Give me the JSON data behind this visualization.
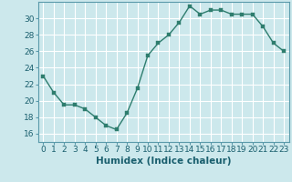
{
  "x": [
    0,
    1,
    2,
    3,
    4,
    5,
    6,
    7,
    8,
    9,
    10,
    11,
    12,
    13,
    14,
    15,
    16,
    17,
    18,
    19,
    20,
    21,
    22,
    23
  ],
  "y": [
    23,
    21,
    19.5,
    19.5,
    19,
    18,
    17,
    16.5,
    18.5,
    21.5,
    25.5,
    27,
    28,
    29.5,
    31.5,
    30.5,
    31,
    31,
    30.5,
    30.5,
    30.5,
    29,
    27,
    26
  ],
  "line_color": "#2e7d6e",
  "marker_color": "#2e7d6e",
  "bg_color": "#cce8ec",
  "grid_color": "#ffffff",
  "xlabel": "Humidex (Indice chaleur)",
  "ylim": [
    15,
    32
  ],
  "yticks": [
    16,
    18,
    20,
    22,
    24,
    26,
    28,
    30
  ],
  "xticks": [
    0,
    1,
    2,
    3,
    4,
    5,
    6,
    7,
    8,
    9,
    10,
    11,
    12,
    13,
    14,
    15,
    16,
    17,
    18,
    19,
    20,
    21,
    22,
    23
  ],
  "font_color": "#1a5f6e",
  "xlabel_fontsize": 7.5,
  "tick_fontsize": 6.5,
  "line_width": 1.0,
  "marker_size": 2.5
}
